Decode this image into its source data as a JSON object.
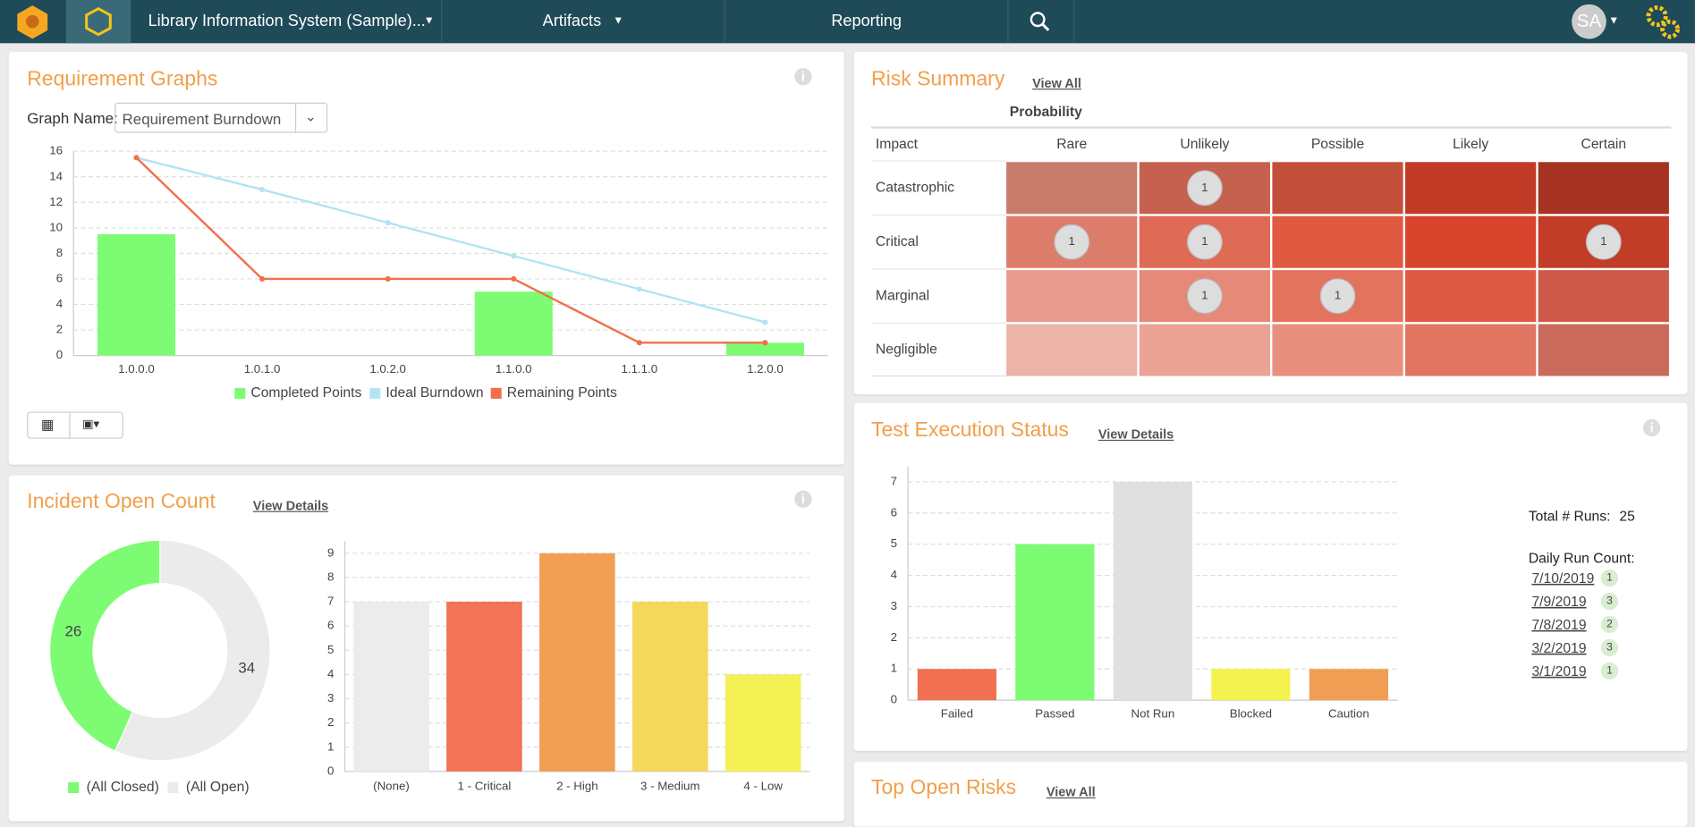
{
  "nav": {
    "project": "Library Information System (Sample)...",
    "artifacts": "Artifacts",
    "reporting": "Reporting",
    "user": "SA"
  },
  "panels": {
    "requirement_graphs": {
      "title": "Requirement Graphs",
      "graph_name_label": "Graph Name:",
      "graph_name": "Requirement Burndown"
    },
    "risk_summary": {
      "title": "Risk Summary",
      "link": "View All",
      "probability": "Probability",
      "impact": "Impact",
      "columns": [
        "Rare",
        "Unlikely",
        "Possible",
        "Likely",
        "Certain"
      ],
      "rows": [
        {
          "label": "Catastrophic",
          "counts": [
            null,
            1,
            null,
            null,
            null
          ],
          "colors": [
            "#c97b6b",
            "#c6604f",
            "#c4503c",
            "#c23b26",
            "#a63322"
          ]
        },
        {
          "label": "Critical",
          "counts": [
            1,
            1,
            null,
            null,
            1
          ],
          "colors": [
            "#dc7d6c",
            "#df6a55",
            "#e05a42",
            "#d8442c",
            "#c23d27"
          ]
        },
        {
          "label": "Marginal",
          "counts": [
            null,
            1,
            1,
            null,
            null
          ],
          "colors": [
            "#e89c8f",
            "#e58a79",
            "#e2735f",
            "#de5a43",
            "#cd5a48"
          ]
        },
        {
          "label": "Negligible",
          "counts": [
            null,
            null,
            null,
            null,
            null
          ],
          "colors": [
            "#ecb3a8",
            "#eba396",
            "#e88f7e",
            "#e07662",
            "#c96a5b"
          ]
        }
      ]
    },
    "test_execution": {
      "title": "Test Execution Status",
      "link": "View Details",
      "total_label": "Total # Runs:",
      "total": 25,
      "daily_label": "Daily Run Count:",
      "daily": [
        {
          "date": "7/10/2019",
          "count": 1
        },
        {
          "date": "7/9/2019",
          "count": 3
        },
        {
          "date": "7/8/2019",
          "count": 2
        },
        {
          "date": "3/2/2019",
          "count": 3
        },
        {
          "date": "3/1/2019",
          "count": 1
        }
      ]
    },
    "incident": {
      "title": "Incident Open Count",
      "link": "View Details"
    },
    "top_open_risks": {
      "title": "Top Open Risks",
      "link": "View All"
    }
  },
  "chart_data": [
    {
      "type": "combo",
      "categories": [
        "1.0.0.0",
        "1.0.1.0",
        "1.0.2.0",
        "1.1.0.0",
        "1.1.1.0",
        "1.2.0.0"
      ],
      "series": [
        {
          "name": "Completed Points",
          "type": "bar",
          "color": "#7dfc73",
          "values": [
            9.5,
            0,
            0,
            5,
            0,
            1
          ]
        },
        {
          "name": "Ideal Burndown",
          "type": "line",
          "color": "#b3e3f5",
          "values": [
            15.5,
            13,
            10.4,
            7.8,
            5.2,
            2.6
          ]
        },
        {
          "name": "Remaining Points",
          "type": "line",
          "color": "#f0704c",
          "values": [
            15.5,
            6,
            6,
            6,
            1,
            1
          ]
        }
      ],
      "ylim": [
        0,
        16
      ],
      "yticks": [
        0,
        2,
        4,
        6,
        8,
        10,
        12,
        14,
        16
      ],
      "grid": true
    },
    {
      "type": "pie",
      "categories": [
        "(All Closed)",
        "(All Open)"
      ],
      "values": [
        26,
        34
      ],
      "colors": [
        "#7dfc73",
        "#ebebeb"
      ]
    },
    {
      "type": "bar",
      "categories": [
        "(None)",
        "1 - Critical",
        "2 - High",
        "3 - Medium",
        "4 - Low"
      ],
      "values": [
        7,
        7,
        9,
        7,
        4
      ],
      "colors": [
        "#ececec",
        "#f27355",
        "#f19f55",
        "#f4d85a",
        "#f3f153"
      ],
      "ylim": [
        0,
        9.5
      ],
      "yticks": [
        0,
        1,
        2,
        3,
        4,
        5,
        6,
        7,
        8,
        9
      ],
      "grid": true
    },
    {
      "type": "bar",
      "categories": [
        "Failed",
        "Passed",
        "Not Run",
        "Blocked",
        "Caution"
      ],
      "values": [
        1,
        5,
        7,
        1,
        1
      ],
      "colors": [
        "#f27052",
        "#7dfc73",
        "#e0e0e0",
        "#f4f24e",
        "#f19e55"
      ],
      "ylim": [
        0,
        7.5
      ],
      "yticks": [
        0,
        1,
        2,
        3,
        4,
        5,
        6,
        7
      ],
      "grid": true
    }
  ]
}
